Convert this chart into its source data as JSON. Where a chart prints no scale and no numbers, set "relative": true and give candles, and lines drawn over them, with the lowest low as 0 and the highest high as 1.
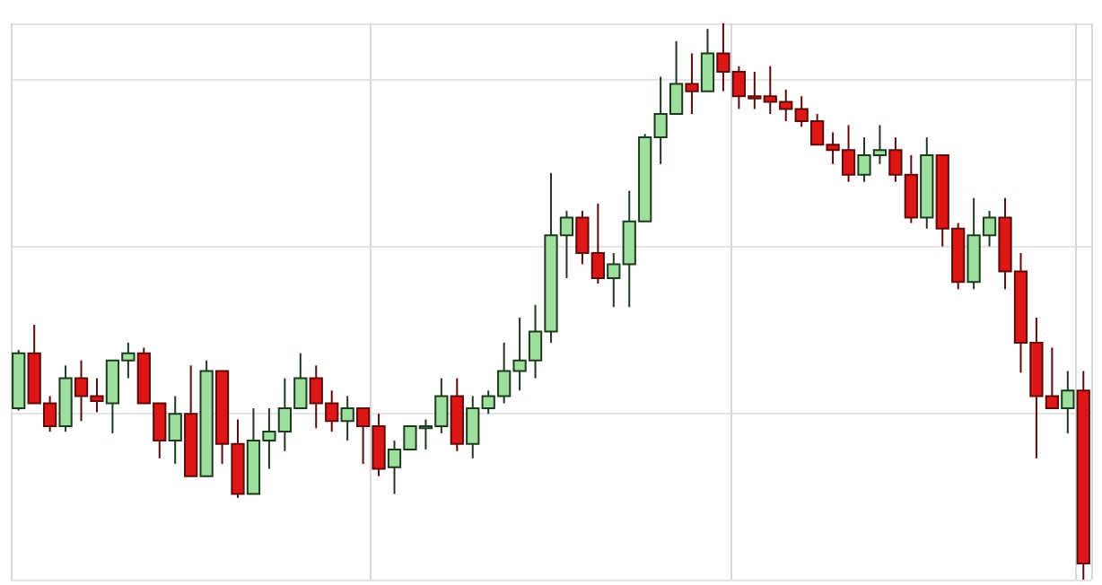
{
  "chart_data": {
    "type": "candlestick",
    "relative": true,
    "grid": true,
    "categories": [
      null,
      null,
      null,
      null,
      null,
      null,
      null,
      null,
      null,
      null,
      null,
      null,
      null,
      null,
      null,
      null,
      null,
      null,
      null,
      null,
      null,
      null,
      null,
      null,
      null,
      null,
      null,
      null,
      null,
      null,
      null,
      null,
      null,
      null,
      null,
      null,
      null,
      null,
      null,
      null,
      null,
      null,
      null,
      null,
      null,
      null,
      null,
      null,
      null,
      null,
      null,
      null,
      null,
      null,
      null,
      null,
      null,
      null,
      null,
      null,
      null,
      null,
      null,
      null,
      null,
      null,
      null,
      null,
      null
    ],
    "ohlc": [
      [
        0.308,
        0.413,
        0.304,
        0.407
      ],
      [
        0.407,
        0.458,
        0.317,
        0.317
      ],
      [
        0.317,
        0.33,
        0.266,
        0.276
      ],
      [
        0.276,
        0.385,
        0.266,
        0.362
      ],
      [
        0.362,
        0.394,
        0.285,
        0.33
      ],
      [
        0.33,
        0.362,
        0.301,
        0.321
      ],
      [
        0.317,
        0.394,
        0.263,
        0.394
      ],
      [
        0.394,
        0.426,
        0.362,
        0.407
      ],
      [
        0.407,
        0.417,
        0.317,
        0.317
      ],
      [
        0.317,
        0.317,
        0.218,
        0.25
      ],
      [
        0.25,
        0.33,
        0.208,
        0.298
      ],
      [
        0.298,
        0.385,
        0.186,
        0.186
      ],
      [
        0.186,
        0.394,
        0.186,
        0.375
      ],
      [
        0.375,
        0.375,
        0.208,
        0.244
      ],
      [
        0.244,
        0.288,
        0.147,
        0.154
      ],
      [
        0.154,
        0.308,
        0.154,
        0.25
      ],
      [
        0.25,
        0.308,
        0.199,
        0.266
      ],
      [
        0.266,
        0.362,
        0.231,
        0.308
      ],
      [
        0.308,
        0.407,
        0.308,
        0.362
      ],
      [
        0.362,
        0.385,
        0.272,
        0.317
      ],
      [
        0.317,
        0.34,
        0.266,
        0.285
      ],
      [
        0.285,
        0.33,
        0.25,
        0.308
      ],
      [
        0.308,
        0.308,
        0.208,
        0.276
      ],
      [
        0.276,
        0.298,
        0.186,
        0.199
      ],
      [
        0.202,
        0.25,
        0.154,
        0.234
      ],
      [
        0.234,
        0.276,
        0.234,
        0.276
      ],
      [
        0.272,
        0.288,
        0.234,
        0.276
      ],
      [
        0.276,
        0.362,
        0.263,
        0.33
      ],
      [
        0.33,
        0.362,
        0.231,
        0.244
      ],
      [
        0.244,
        0.33,
        0.218,
        0.308
      ],
      [
        0.308,
        0.34,
        0.298,
        0.33
      ],
      [
        0.33,
        0.426,
        0.317,
        0.375
      ],
      [
        0.375,
        0.471,
        0.34,
        0.394
      ],
      [
        0.394,
        0.494,
        0.362,
        0.446
      ],
      [
        0.446,
        0.731,
        0.426,
        0.619
      ],
      [
        0.619,
        0.663,
        0.542,
        0.651
      ],
      [
        0.651,
        0.663,
        0.567,
        0.587
      ],
      [
        0.587,
        0.676,
        0.532,
        0.542
      ],
      [
        0.542,
        0.587,
        0.49,
        0.567
      ],
      [
        0.567,
        0.699,
        0.49,
        0.644
      ],
      [
        0.644,
        0.801,
        0.644,
        0.795
      ],
      [
        0.795,
        0.904,
        0.747,
        0.837
      ],
      [
        0.837,
        0.968,
        0.837,
        0.891
      ],
      [
        0.891,
        0.946,
        0.837,
        0.878
      ],
      [
        0.878,
        0.99,
        0.878,
        0.946
      ],
      [
        0.946,
        1,
        0.878,
        0.913
      ],
      [
        0.913,
        0.923,
        0.846,
        0.869
      ],
      [
        0.869,
        0.913,
        0.846,
        0.865
      ],
      [
        0.869,
        0.923,
        0.837,
        0.859
      ],
      [
        0.859,
        0.881,
        0.824,
        0.846
      ],
      [
        0.846,
        0.869,
        0.814,
        0.824
      ],
      [
        0.824,
        0.837,
        0.782,
        0.782
      ],
      [
        0.782,
        0.804,
        0.747,
        0.772
      ],
      [
        0.772,
        0.817,
        0.715,
        0.728
      ],
      [
        0.728,
        0.795,
        0.715,
        0.763
      ],
      [
        0.763,
        0.817,
        0.747,
        0.772
      ],
      [
        0.772,
        0.795,
        0.715,
        0.728
      ],
      [
        0.728,
        0.763,
        0.641,
        0.651
      ],
      [
        0.651,
        0.795,
        0.631,
        0.763
      ],
      [
        0.763,
        0.763,
        0.599,
        0.631
      ],
      [
        0.631,
        0.641,
        0.522,
        0.535
      ],
      [
        0.535,
        0.686,
        0.522,
        0.619
      ],
      [
        0.619,
        0.663,
        0.599,
        0.651
      ],
      [
        0.651,
        0.686,
        0.522,
        0.554
      ],
      [
        0.554,
        0.587,
        0.372,
        0.426
      ],
      [
        0.426,
        0.471,
        0.218,
        0.33
      ],
      [
        0.33,
        0.417,
        0.308,
        0.308
      ],
      [
        0.308,
        0.375,
        0.263,
        0.34
      ],
      [
        0.34,
        0.375,
        0,
        0.029
      ]
    ]
  }
}
